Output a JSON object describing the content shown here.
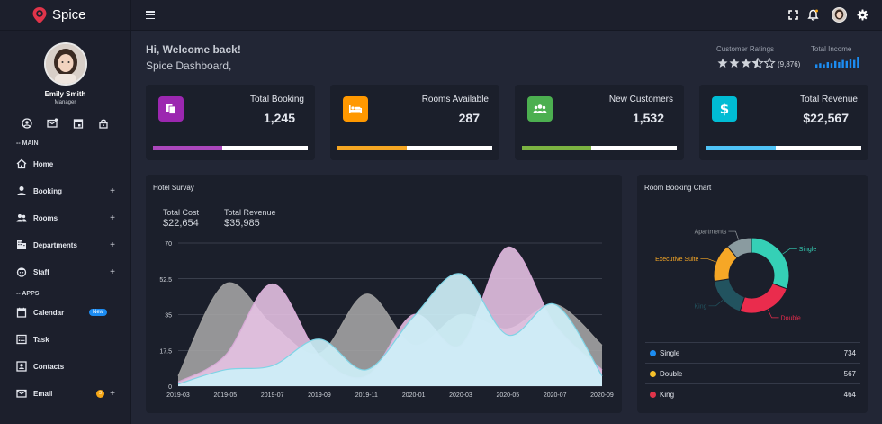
{
  "brand": {
    "name": "Spice"
  },
  "profile": {
    "name": "Emily Smith",
    "role": "Manager"
  },
  "sidebar": {
    "section_main": "-- MAIN",
    "section_apps": "-- APPS",
    "items": [
      {
        "label": "Home",
        "icon": "home-icon",
        "expandable": false
      },
      {
        "label": "Booking",
        "icon": "user-icon",
        "expandable": true
      },
      {
        "label": "Rooms",
        "icon": "users-icon",
        "expandable": true
      },
      {
        "label": "Departments",
        "icon": "building-icon",
        "expandable": true
      },
      {
        "label": "Staff",
        "icon": "staff-icon",
        "expandable": true
      }
    ],
    "apps": [
      {
        "label": "Calendar",
        "icon": "calendar-icon",
        "badge": "New"
      },
      {
        "label": "Task",
        "icon": "task-icon"
      },
      {
        "label": "Contacts",
        "icon": "contacts-icon"
      },
      {
        "label": "Email",
        "icon": "email-icon",
        "count": "3"
      }
    ]
  },
  "header": {
    "welcome": "Hi, Welcome back!",
    "subtitle": "Spice Dashboard,",
    "ratings_label": "Customer Ratings",
    "ratings_stars": 3.5,
    "ratings_count": "(9,876)",
    "income_label": "Total Income",
    "income_bars": [
      3,
      4,
      3,
      5,
      4,
      6,
      5,
      7,
      6,
      8,
      7,
      10
    ]
  },
  "stats": [
    {
      "title": "Total Booking",
      "value": "1,245",
      "color": "#9c27b0",
      "bar_color": "#ab47bc",
      "progress": 0.45,
      "icon": "copy-icon"
    },
    {
      "title": "Rooms Available",
      "value": "287",
      "color": "#ff9800",
      "bar_color": "#f5a623",
      "progress": 0.45,
      "icon": "bed-icon"
    },
    {
      "title": "New Customers",
      "value": "1,532",
      "color": "#4caf50",
      "bar_color": "#7cb342",
      "progress": 0.45,
      "icon": "users-icon"
    },
    {
      "title": "Total Revenue",
      "value": "$22,567",
      "color": "#00bcd4",
      "bar_color": "#4fc3f7",
      "progress": 0.45,
      "icon": "dollar-icon"
    }
  ],
  "survey": {
    "title": "Hotel Survay",
    "total_cost_label": "Total Cost",
    "total_cost_value": "$22,654",
    "total_revenue_label": "Total Revenue",
    "total_revenue_value": "$35,985"
  },
  "booking_chart": {
    "title": "Room Booking Chart",
    "legend": [
      {
        "name": "Single",
        "value": "734",
        "color": "#1c8cf2"
      },
      {
        "name": "Double",
        "value": "567",
        "color": "#f6c02a"
      },
      {
        "name": "King",
        "value": "464",
        "color": "#e0344a"
      }
    ]
  },
  "chart_data": [
    {
      "type": "area",
      "title": "",
      "x": [
        "2019-03",
        "2019-05",
        "2019-07",
        "2019-09",
        "2019-11",
        "2020-01",
        "2020-03",
        "2020-05",
        "2020-07",
        "2020-09"
      ],
      "ylim": [
        0,
        70
      ],
      "yticks": [
        "0",
        "17.5",
        "35",
        "52.5",
        "70"
      ],
      "series": [
        {
          "name": "",
          "color": "#a6a6a6",
          "values": [
            5,
            50,
            30,
            16,
            45,
            20,
            35,
            28,
            40,
            20
          ]
        },
        {
          "name": "",
          "color": "#e8c4e6",
          "values": [
            2,
            15,
            50,
            15,
            5,
            35,
            20,
            68,
            30,
            8
          ]
        },
        {
          "name": "",
          "color": "#cdeff7",
          "values": [
            1,
            8,
            10,
            23,
            8,
            34,
            55,
            25,
            40,
            5
          ]
        }
      ]
    },
    {
      "type": "pie",
      "title": "",
      "labels": [
        "Single",
        "Double",
        "King",
        "Executive Suite",
        "Apartments"
      ],
      "values": [
        28,
        22,
        16,
        15,
        10
      ],
      "colors": [
        "#35d0b6",
        "#ea2c4d",
        "#22535f",
        "#f6a726",
        "#8a9ba0"
      ]
    }
  ]
}
